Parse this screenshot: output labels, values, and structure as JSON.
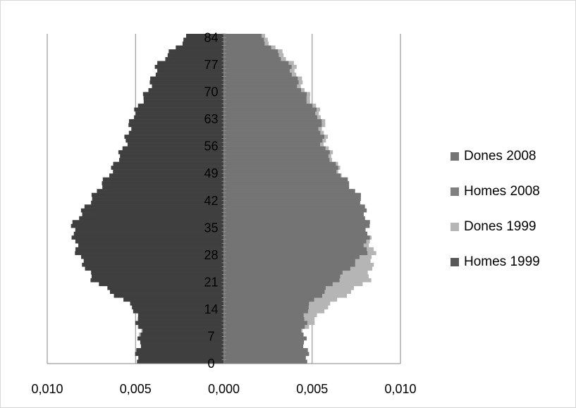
{
  "chart_data": {
    "type": "bar",
    "orientation": "horizontal-population-pyramid",
    "title": "",
    "xlabel": "",
    "ylabel": "",
    "xlim": [
      -0.01,
      0.01
    ],
    "x_tick_labels": [
      "0,010",
      "0,005",
      "0,000",
      "0,005",
      "0,010"
    ],
    "y_tick_labels": [
      "0",
      "7",
      "14",
      "21",
      "28",
      "35",
      "42",
      "49",
      "56",
      "63",
      "70",
      "77",
      "84"
    ],
    "y_tick_ages": [
      0,
      7,
      14,
      21,
      28,
      35,
      42,
      49,
      56,
      63,
      70,
      77,
      84
    ],
    "legend_position": "right",
    "series": [
      {
        "name": "Dones 2008",
        "side": "right",
        "color": "#747474",
        "ages": [
          0,
          7,
          14,
          21,
          28,
          35,
          42,
          49,
          56,
          63,
          70,
          77,
          84
        ],
        "values": [
          0.0048,
          0.0045,
          0.0047,
          0.0064,
          0.008,
          0.0082,
          0.0078,
          0.0065,
          0.0056,
          0.0054,
          0.0044,
          0.0036,
          0.002
        ]
      },
      {
        "name": "Homes 2008",
        "side": "left",
        "color": "#7f7f7f",
        "ages": [
          0,
          7,
          14,
          21,
          28,
          35,
          42,
          49,
          56,
          63,
          70,
          77,
          84
        ],
        "values": [
          0.005,
          0.0047,
          0.0051,
          0.0074,
          0.0083,
          0.0086,
          0.0075,
          0.0064,
          0.0056,
          0.0052,
          0.0043,
          0.0037,
          0.002
        ]
      },
      {
        "name": "Dones 1999",
        "side": "right",
        "color": "#b5b5b5",
        "ages": [
          0,
          7,
          14,
          21,
          28,
          35,
          42,
          49,
          56,
          63,
          70,
          77,
          84
        ],
        "values": [
          0.0048,
          0.0044,
          0.0058,
          0.0082,
          0.0085,
          0.008,
          0.0076,
          0.0066,
          0.0058,
          0.0056,
          0.0046,
          0.0039,
          0.0022
        ]
      },
      {
        "name": "Homes 1999",
        "side": "left",
        "color": "#575757",
        "ages": [
          0,
          7,
          14,
          21,
          28,
          35,
          42,
          49,
          56,
          63,
          70,
          77,
          84
        ],
        "values": [
          0.004,
          0.0048,
          0.005,
          0.006,
          0.0082,
          0.0082,
          0.0068,
          0.006,
          0.0056,
          0.005,
          0.0042,
          0.0033,
          0.0015
        ]
      }
    ]
  }
}
